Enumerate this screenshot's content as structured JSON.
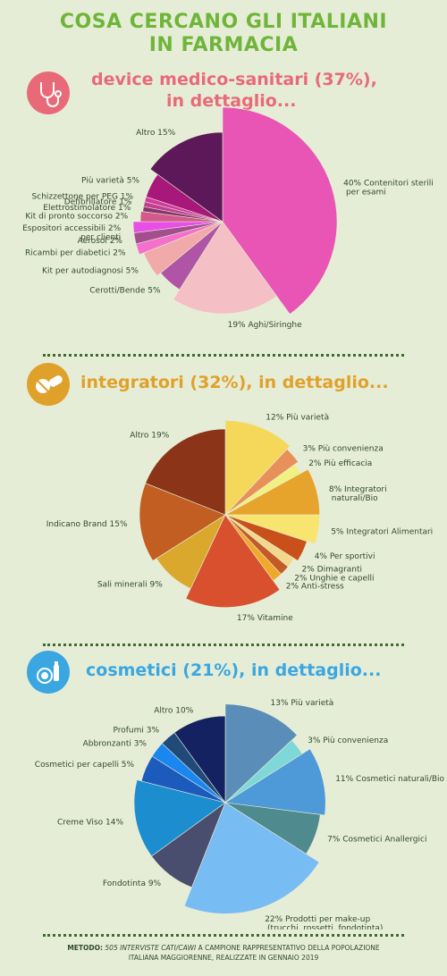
{
  "page_title_line1": "COSA CERCANO GLI ITALIANI",
  "page_title_line2": "IN FARMACIA",
  "footer": {
    "label": "METODO:",
    "method": "505 INTERVISTE CATI/CAWI",
    "text1": " A CAMPIONE RAPPRESENTATIVO DELLA POPOLAZIONE",
    "text2": "ITALIANA MAGGIORENNE, REALIZZATE IN GENNAIO 2019"
  },
  "sections": [
    {
      "title": "device medico-sanitari (37%),",
      "title2": "in dettaglio...",
      "color": "#e86a78",
      "icon": "stethoscope-icon"
    },
    {
      "title": "integratori (32%), in dettaglio...",
      "title2": "",
      "color": "#e0a12a",
      "icon": "pills-icon"
    },
    {
      "title": "cosmetici (21%), in dettaglio...",
      "title2": "",
      "color": "#3aa6e2",
      "icon": "cosmetics-icon"
    }
  ],
  "chart_data": [
    {
      "type": "pie",
      "title": "device medico-sanitari (37%), in dettaglio...",
      "slices": [
        {
          "label": "Contenitori sterili per esami",
          "value": 40,
          "pct": "40%",
          "color": "#e855b4"
        },
        {
          "label": "Aghi/Siringhe",
          "value": 19,
          "pct": "19%",
          "color": "#f4bfc5"
        },
        {
          "label": "Cerotti/Bende",
          "value": 5,
          "pct": "5%",
          "color": "#b054a6"
        },
        {
          "label": "Kit per autodiagnosi",
          "value": 5,
          "pct": "5%",
          "color": "#f2a9a9"
        },
        {
          "label": "Ricambi per diabetici",
          "value": 2,
          "pct": "2%",
          "color": "#f56fcc"
        },
        {
          "label": "Aerosol",
          "value": 2,
          "pct": "2%",
          "color": "#a34f8e"
        },
        {
          "label": "Espositori accessibili per clienti",
          "value": 2,
          "pct": "2%",
          "color": "#e84fe6"
        },
        {
          "label": "Kit di pronto soccorso",
          "value": 2,
          "pct": "2%",
          "color": "#d35a8a"
        },
        {
          "label": "Elettrostimolatore",
          "value": 1,
          "pct": "1%",
          "color": "#8a3570"
        },
        {
          "label": "Defibrillatore",
          "value": 1,
          "pct": "1%",
          "color": "#c23e92"
        },
        {
          "label": "Schizzettone per PEG",
          "value": 1,
          "pct": "1%",
          "color": "#d43a9e"
        },
        {
          "label": "Più varietà",
          "value": 5,
          "pct": "5%",
          "color": "#a8187a"
        },
        {
          "label": "Altro",
          "value": 15,
          "pct": "15%",
          "color": "#5c1858"
        }
      ]
    },
    {
      "type": "pie",
      "title": "integratori (32%), in dettaglio...",
      "slices": [
        {
          "label": "Più varietà",
          "value": 12,
          "pct": "12%",
          "color": "#f5d85a"
        },
        {
          "label": "Più convenienza",
          "value": 3,
          "pct": "3%",
          "color": "#e8905a"
        },
        {
          "label": "Più efficacia",
          "value": 2,
          "pct": "2%",
          "color": "#f2f080"
        },
        {
          "label": "Integratori naturali/Bio",
          "value": 8,
          "pct": "8%",
          "color": "#e6a42c"
        },
        {
          "label": "Integratori Alimentari",
          "value": 5,
          "pct": "5%",
          "color": "#f7e570"
        },
        {
          "label": "Per sportivi",
          "value": 4,
          "pct": "4%",
          "color": "#c9501a"
        },
        {
          "label": "Dimagranti",
          "value": 2,
          "pct": "2%",
          "color": "#f2d88a"
        },
        {
          "label": "Unghie e capelli",
          "value": 2,
          "pct": "2%",
          "color": "#c45a28"
        },
        {
          "label": "Anti-stress",
          "value": 2,
          "pct": "2%",
          "color": "#f0a828"
        },
        {
          "label": "Vitamine",
          "value": 17,
          "pct": "17%",
          "color": "#d9502e"
        },
        {
          "label": "Sali minerali",
          "value": 9,
          "pct": "9%",
          "color": "#dba82e"
        },
        {
          "label": "Indicano Brand",
          "value": 15,
          "pct": "15%",
          "color": "#c25e22"
        },
        {
          "label": "Altro",
          "value": 19,
          "pct": "19%",
          "color": "#8b3417"
        }
      ]
    },
    {
      "type": "pie",
      "title": "cosmetici (21%), in dettaglio...",
      "slices": [
        {
          "label": "Più varietà",
          "value": 13,
          "pct": "13%",
          "color": "#5a8eb8"
        },
        {
          "label": "Più convenienza",
          "value": 3,
          "pct": "3%",
          "color": "#7fd8d8"
        },
        {
          "label": "Cosmetici naturali/Bio",
          "value": 11,
          "pct": "11%",
          "color": "#4e9ad8"
        },
        {
          "label": "Cosmetici Anallergici",
          "value": 7,
          "pct": "7%",
          "color": "#4e8a8e"
        },
        {
          "label": "Prodotti per make-up (trucchi, rossetti, fondotinta)",
          "value": 22,
          "pct": "22%",
          "color": "#78bcf4"
        },
        {
          "label": "Fondotinta",
          "value": 9,
          "pct": "9%",
          "color": "#4a4e6e"
        },
        {
          "label": "Creme Viso",
          "value": 14,
          "pct": "14%",
          "color": "#1c8ed0"
        },
        {
          "label": "Cosmetici per capelli",
          "value": 5,
          "pct": "5%",
          "color": "#1c5abc"
        },
        {
          "label": "Abbronzanti",
          "value": 3,
          "pct": "3%",
          "color": "#1a86f0"
        },
        {
          "label": "Profumi",
          "value": 3,
          "pct": "3%",
          "color": "#1f4a7a"
        },
        {
          "label": "Altro",
          "value": 10,
          "pct": "10%",
          "color": "#142262"
        }
      ]
    }
  ]
}
